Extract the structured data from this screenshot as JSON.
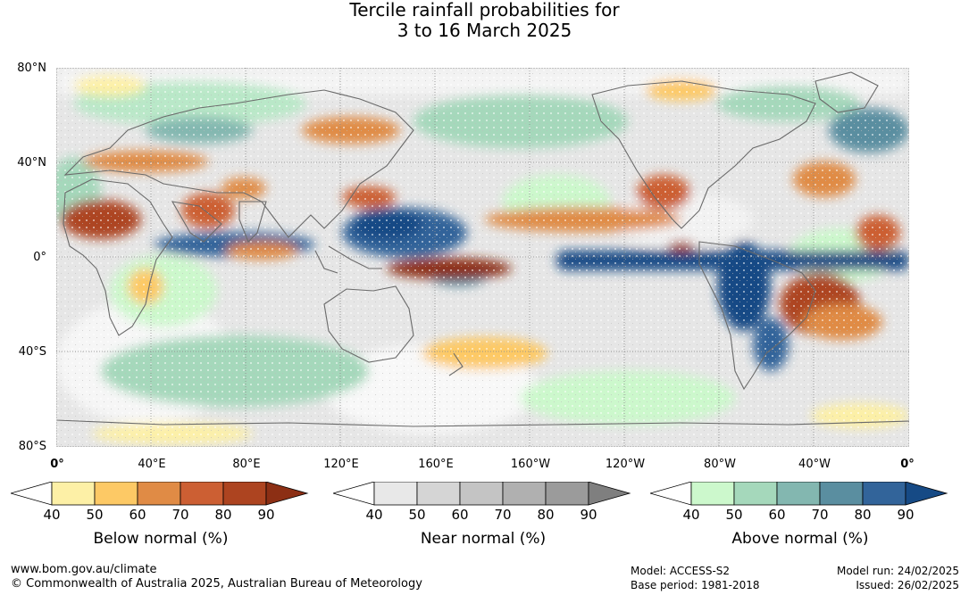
{
  "title": {
    "line1": "Tercile rainfall probabilities for",
    "line2": "3 to 16 March 2025"
  },
  "axes": {
    "lat_labels": [
      "80°N",
      "40°N",
      "0°",
      "40°S",
      "80°S"
    ],
    "lon_labels": [
      "0°",
      "40°E",
      "80°E",
      "120°E",
      "160°E",
      "160°W",
      "120°W",
      "80°W",
      "40°W",
      "0°"
    ]
  },
  "colorbars": [
    {
      "name": "below",
      "label": "Below normal (%)",
      "ticks": [
        "40",
        "50",
        "60",
        "70",
        "80",
        "90"
      ],
      "colors": [
        "#ffffff",
        "#fdf0a6",
        "#fdc965",
        "#e08b45",
        "#cc5f33",
        "#ad4420",
        "#8c2f14"
      ]
    },
    {
      "name": "near",
      "label": "Near normal (%)",
      "ticks": [
        "40",
        "50",
        "60",
        "70",
        "80",
        "90"
      ],
      "colors": [
        "#ffffff",
        "#e8e8e8",
        "#d5d5d5",
        "#c4c4c4",
        "#b0b0b0",
        "#9b9b9b",
        "#7f7f7f"
      ]
    },
    {
      "name": "above",
      "label": "Above normal (%)",
      "ticks": [
        "40",
        "50",
        "60",
        "70",
        "80",
        "90"
      ],
      "colors": [
        "#ffffff",
        "#ccf8cc",
        "#a5d8bb",
        "#83b7b0",
        "#5a8ea0",
        "#32649a",
        "#164a85"
      ]
    }
  ],
  "footer": {
    "website": "www.bom.gov.au/climate",
    "copyright": "© Commonwealth of Australia 2025, Australian Bureau of Meteorology",
    "model": "Model: ACCESS-S2",
    "base_period": "Base period: 1981-2018",
    "model_run": "Model run: 24/02/2025",
    "issued": "Issued: 26/02/2025"
  }
}
